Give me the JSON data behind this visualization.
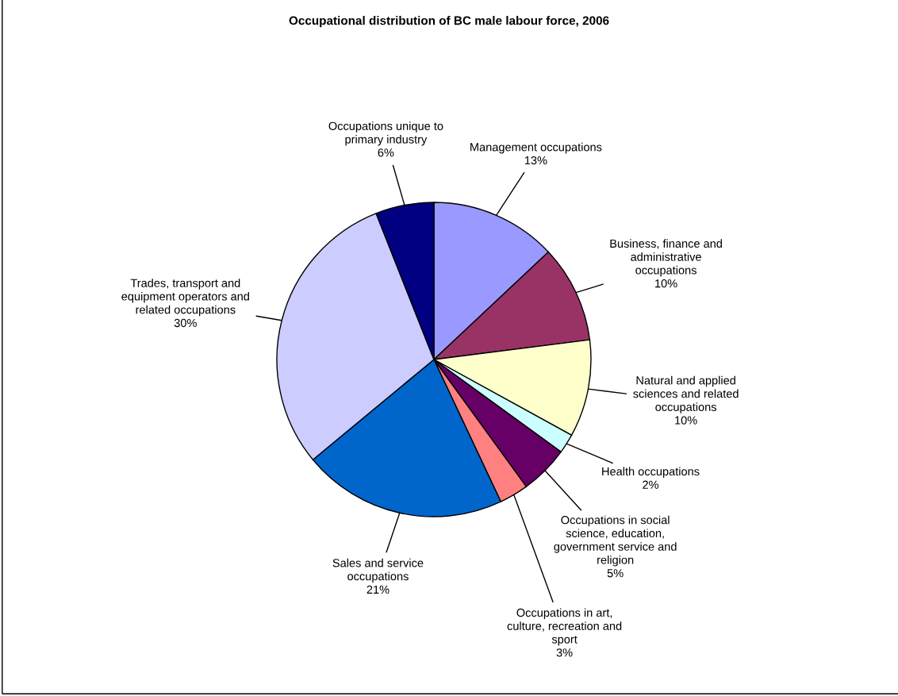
{
  "chart_data": {
    "type": "pie",
    "title": "Occupational distribution of BC male labour force, 2006",
    "categories": [
      "Management occupations",
      "Business, finance and administrative occupations",
      "Natural and applied sciences and related occupations",
      "Health occupations",
      "Occupations in social science, education, government service and religion",
      "Occupations in art, culture, recreation and sport",
      "Sales and service occupations",
      "Trades, transport and equipment operators and related occupations",
      "Occupations unique to primary industry"
    ],
    "values": [
      13,
      10,
      10,
      2,
      5,
      3,
      21,
      30,
      6
    ],
    "value_labels": [
      "13%",
      "10%",
      "10%",
      "2%",
      "5%",
      "3%",
      "21%",
      "30%",
      "6%"
    ],
    "colors": [
      "#9999ff",
      "#993366",
      "#ffffcc",
      "#ccffff",
      "#660066",
      "#ff8080",
      "#0066cc",
      "#ccccff",
      "#000080"
    ]
  }
}
